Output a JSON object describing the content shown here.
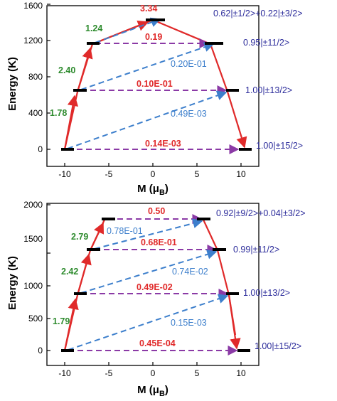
{
  "colors": {
    "red": "#e02a2a",
    "green": "#2e8b2e",
    "blue": "#3d7fcc",
    "purple": "#8b3aa6",
    "state": "#2a2a9a"
  },
  "panels": [
    {
      "ylabel": "Energy (K)",
      "xlabel": "M (μB)",
      "ylim": [
        0,
        1600
      ],
      "xlim": [
        -12,
        12
      ],
      "yticks": [
        "0",
        "400",
        "800",
        "1200",
        "1600"
      ],
      "xticks": [
        "-10",
        "-5",
        "0",
        "5",
        "10"
      ],
      "levels": [
        {
          "M": -10,
          "E": 0
        },
        {
          "M": 10,
          "E": 0
        },
        {
          "M": -8.5,
          "E": 650
        },
        {
          "M": 8.5,
          "E": 650
        },
        {
          "M": -6.5,
          "E": 1185
        },
        {
          "M": 6.5,
          "E": 1185
        },
        {
          "M": 0,
          "E": 1445
        }
      ],
      "state_labels": [
        "0.62|±1/2>+0.22|±3/2>",
        "0.95|±11/2>",
        "1.00|±13/2>",
        "1.00|±15/2>"
      ],
      "red_path": [
        [
          -10,
          0
        ],
        [
          -8.5,
          650
        ],
        [
          -6.5,
          1185
        ],
        [
          0,
          1445
        ],
        [
          6.5,
          1185
        ],
        [
          8.5,
          650
        ],
        [
          10,
          0
        ]
      ],
      "green_labels": [
        "1.78",
        "2.40",
        "1.24"
      ],
      "top_label": "3.34",
      "purple_arrows": [
        {
          "from": [
            -10,
            0
          ],
          "to": [
            9.5,
            0
          ],
          "label": "0.14E-03"
        },
        {
          "from": [
            -8.5,
            650
          ],
          "to": [
            8.3,
            650
          ],
          "label": "0.10E-01"
        },
        {
          "from": [
            -6.5,
            1185
          ],
          "to": [
            6.3,
            1185
          ],
          "label": "0.19"
        }
      ],
      "blue_arrows": [
        {
          "from": [
            -10,
            0
          ],
          "to": [
            8.5,
            650
          ],
          "label": "0.49E-03"
        },
        {
          "from": [
            -8.5,
            650
          ],
          "to": [
            6.5,
            1185
          ],
          "label": "0.20E-01"
        },
        {
          "from": [
            -6.5,
            1185
          ],
          "to": [
            0.8,
            1445
          ],
          "label": ""
        }
      ]
    },
    {
      "ylabel": "Energy (K)",
      "xlabel": "M (μB)",
      "ylim": [
        0,
        2000
      ],
      "xlim": [
        -12,
        12
      ],
      "yticks": [
        "0",
        "500",
        "1000",
        "1500",
        "2000"
      ],
      "xticks": [
        "-10",
        "-5",
        "0",
        "5",
        "10"
      ],
      "levels": [
        {
          "M": -10,
          "E": 0
        },
        {
          "M": 10,
          "E": 0
        },
        {
          "M": -8.5,
          "E": 750
        },
        {
          "M": 8.5,
          "E": 750
        },
        {
          "M": -7,
          "E": 1380
        },
        {
          "M": 7,
          "E": 1380
        },
        {
          "M": -5.5,
          "E": 1790
        },
        {
          "M": 5.5,
          "E": 1790
        }
      ],
      "state_labels": [
        "0.92|±9/2>+0.04|±3/2>",
        "0.99|±11/2>",
        "1.00|±13/2>",
        "1.00|±15/2>"
      ],
      "red_path": [
        [
          -10,
          0
        ],
        [
          -8.5,
          750
        ],
        [
          -7,
          1380
        ],
        [
          -5.5,
          1790
        ]
      ],
      "red_path_right": [
        [
          5.5,
          1790
        ],
        [
          7,
          1380
        ],
        [
          8.5,
          750
        ],
        [
          10,
          0
        ]
      ],
      "green_labels": [
        "1.79",
        "2.42",
        "2.79"
      ],
      "purple_arrows": [
        {
          "from": [
            -10,
            0
          ],
          "to": [
            9.5,
            0
          ],
          "label": "0.45E-04"
        },
        {
          "from": [
            -8.5,
            750
          ],
          "to": [
            8.3,
            750
          ],
          "label": "0.49E-02"
        },
        {
          "from": [
            -7,
            1380
          ],
          "to": [
            6.8,
            1380
          ],
          "label": "0.68E-01"
        },
        {
          "from": [
            -5.5,
            1790
          ],
          "to": [
            5.3,
            1790
          ],
          "label": "0.50"
        }
      ],
      "blue_arrows": [
        {
          "from": [
            -10,
            0
          ],
          "to": [
            8.5,
            750
          ],
          "label": "0.15E-03"
        },
        {
          "from": [
            -8.5,
            750
          ],
          "to": [
            7,
            1380
          ],
          "label": "0.74E-02"
        },
        {
          "from": [
            -7,
            1380
          ],
          "to": [
            5.5,
            1790
          ],
          "label": "0.78E-01"
        }
      ]
    }
  ]
}
